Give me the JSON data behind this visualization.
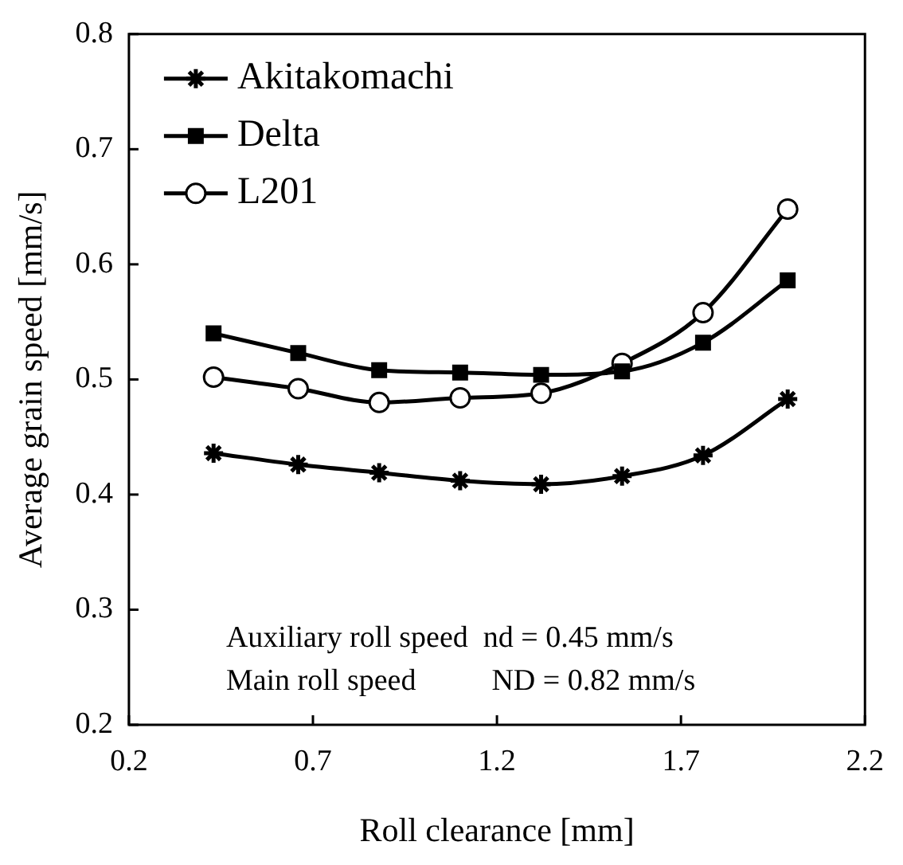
{
  "chart_data": {
    "type": "line",
    "xlabel": "Roll clearance [mm]",
    "ylabel": "Average grain speed [mm/s]",
    "x": [
      0.43,
      0.66,
      0.88,
      1.1,
      1.32,
      1.54,
      1.76,
      1.99
    ],
    "series": [
      {
        "name": "Akitakomachi",
        "color": "#000000",
        "marker": "cross",
        "values": [
          0.436,
          0.426,
          0.419,
          0.412,
          0.409,
          0.416,
          0.434,
          0.483
        ]
      },
      {
        "name": "Delta",
        "color": "#000000",
        "marker": "square",
        "values": [
          0.54,
          0.523,
          0.508,
          0.506,
          0.504,
          0.507,
          0.532,
          0.586
        ]
      },
      {
        "name": "L201",
        "color": "#000000",
        "marker": "circle",
        "values": [
          0.502,
          0.492,
          0.48,
          0.484,
          0.488,
          0.514,
          0.558,
          0.648
        ]
      }
    ],
    "xlim": [
      0.2,
      2.2
    ],
    "xticks": [
      0.2,
      0.7,
      1.2,
      1.7,
      2.2
    ],
    "ylim": [
      0.2,
      0.8
    ],
    "yticks": [
      0.2,
      0.3,
      0.4,
      0.5,
      0.6,
      0.7,
      0.8
    ],
    "grid": false,
    "legend": "top left",
    "line_style": "solid",
    "annotations": [
      "Auxiliary roll speed  nd = 0.45 mm/s",
      "Main roll speed          ND = 0.82 mm/s"
    ]
  }
}
